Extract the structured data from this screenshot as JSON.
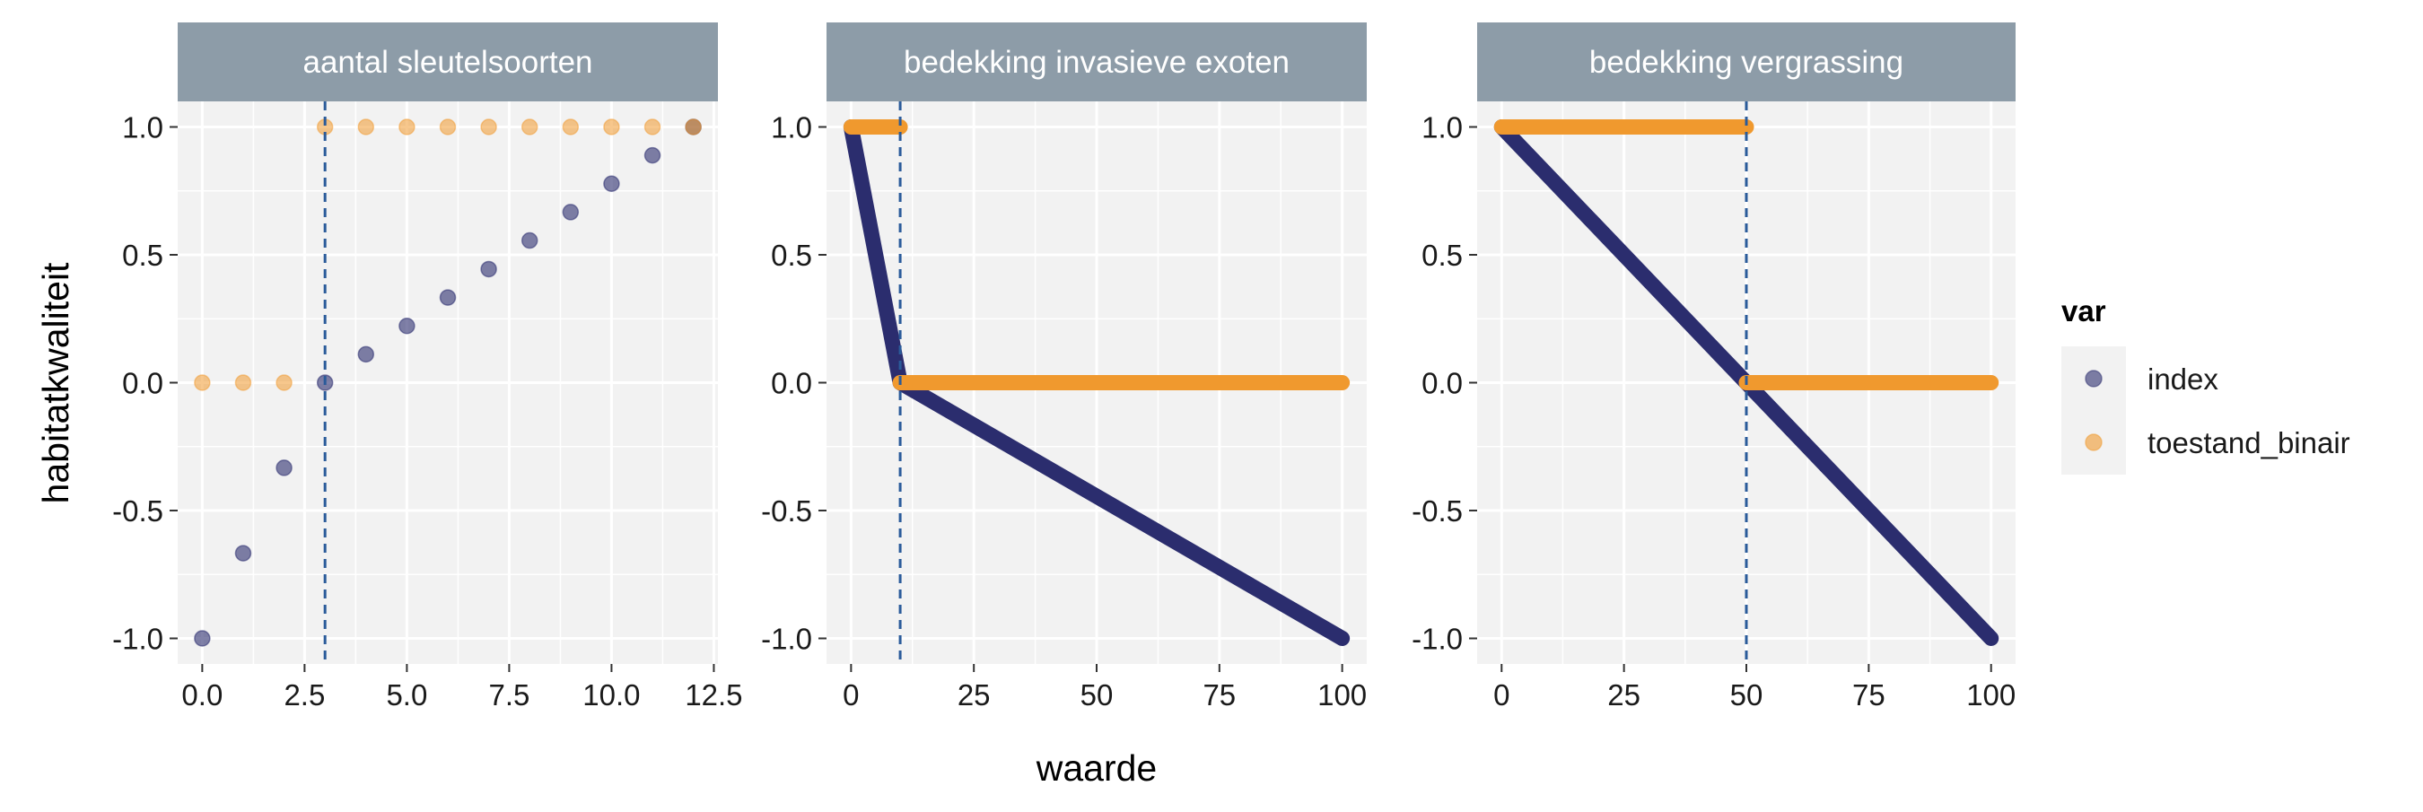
{
  "chart_data": {
    "type": "scatter",
    "xlabel": "waarde",
    "ylabel": "habitatkwaliteit",
    "ylim": [
      -1.1,
      1.1
    ],
    "y_ticks": [
      -1.0,
      -0.5,
      0.0,
      0.5,
      1.0
    ],
    "y_tick_labels": [
      "-1.0",
      "-0.5",
      "0.0",
      "0.5",
      "1.0"
    ],
    "legend": {
      "title": "var",
      "position": "right",
      "entries": [
        {
          "name": "index",
          "color": "#2b2d6e"
        },
        {
          "name": "toestand_binair",
          "color": "#f0992e"
        }
      ]
    },
    "panels": [
      {
        "strip": "aantal sleutelsoorten",
        "xlim": [
          -0.6,
          12.6
        ],
        "x_ticks": [
          0,
          2.5,
          5,
          7.5,
          10,
          12.5
        ],
        "x_tick_labels": [
          "0.0",
          "2.5",
          "5.0",
          "7.5",
          "10.0",
          "12.5"
        ],
        "threshold": 3,
        "series": [
          {
            "name": "index",
            "x": [
              0,
              1,
              2,
              3,
              4,
              5,
              6,
              7,
              8,
              9,
              10,
              11,
              12
            ],
            "y": [
              -1.0,
              -0.667,
              -0.333,
              0.0,
              0.111,
              0.222,
              0.333,
              0.444,
              0.556,
              0.667,
              0.778,
              0.889,
              1.0
            ]
          },
          {
            "name": "toestand_binair",
            "x": [
              0,
              1,
              2,
              3,
              4,
              5,
              6,
              7,
              8,
              9,
              10,
              11,
              12
            ],
            "y": [
              0,
              0,
              0,
              1,
              1,
              1,
              1,
              1,
              1,
              1,
              1,
              1,
              1
            ]
          }
        ]
      },
      {
        "strip": "bedekking invasieve exoten",
        "xlim": [
          -5,
          105
        ],
        "x_ticks": [
          0,
          25,
          50,
          75,
          100
        ],
        "x_tick_labels": [
          "0",
          "25",
          "50",
          "75",
          "100"
        ],
        "threshold": 10,
        "series": [
          {
            "name": "index",
            "segments": [
              [
                0,
                1.0
              ],
              [
                10,
                0.0
              ],
              [
                100,
                -1.0
              ]
            ]
          },
          {
            "name": "toestand_binair",
            "segments_list": [
              [
                [
                  0,
                  1
                ],
                [
                  10,
                  1
                ]
              ],
              [
                [
                  10,
                  0
                ],
                [
                  100,
                  0
                ]
              ]
            ]
          }
        ]
      },
      {
        "strip": "bedekking vergrassing",
        "xlim": [
          -5,
          105
        ],
        "x_ticks": [
          0,
          25,
          50,
          75,
          100
        ],
        "x_tick_labels": [
          "0",
          "25",
          "50",
          "75",
          "100"
        ],
        "threshold": 50,
        "series": [
          {
            "name": "index",
            "segments": [
              [
                0,
                1.0
              ],
              [
                100,
                -1.0
              ]
            ]
          },
          {
            "name": "toestand_binair",
            "segments_list": [
              [
                [
                  0,
                  1
                ],
                [
                  50,
                  1
                ]
              ],
              [
                [
                  50,
                  0
                ],
                [
                  100,
                  0
                ]
              ]
            ]
          }
        ]
      }
    ]
  }
}
